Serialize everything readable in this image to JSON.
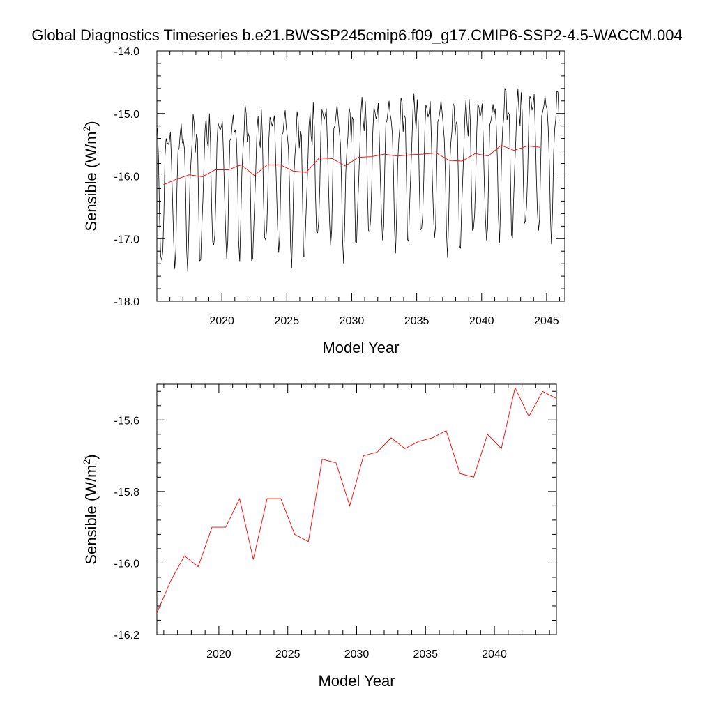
{
  "title": "Global Diagnostics Timeseries b.e21.BWSSP245cmip6.f09_g17.CMIP6-SSP2-4.5-WACCM.004",
  "colors": {
    "monthly": "#000000",
    "annual": "#ff0000",
    "axis": "#000000"
  },
  "chart_data": [
    {
      "type": "line",
      "xlabel": "Model Year",
      "ylabel": {
        "main": "Sensible (W/m",
        "sup": "2",
        "close": ")"
      },
      "xlim": [
        2015.0,
        2046.4
      ],
      "ylim": [
        -18.0,
        -14.0
      ],
      "xticks": [
        "2020",
        "2025",
        "2030",
        "2035",
        "2040",
        "2045"
      ],
      "yticks": [
        "-14.0",
        "-15.0",
        "-16.0",
        "-17.0",
        "-18.0"
      ],
      "monthly_pattern": [
        -15.2,
        -15.5,
        -16.3,
        -17.1,
        -17.3,
        -16.9,
        -16.2,
        -15.6,
        -15.3,
        -15.1,
        -15.2,
        -15.4
      ],
      "monthly_year_range": [
        2015,
        2045
      ],
      "series": [
        {
          "role": "monthly",
          "note": "monthly values: per-year annual mean plus seasonal cycle"
        },
        {
          "role": "annual",
          "x": [
            2015.5,
            2016.5,
            2017.5,
            2018.5,
            2019.5,
            2020.5,
            2021.5,
            2022.5,
            2023.5,
            2024.5,
            2025.5,
            2026.5,
            2027.5,
            2028.5,
            2029.5,
            2030.5,
            2031.5,
            2032.5,
            2033.5,
            2034.5,
            2035.5,
            2036.5,
            2037.5,
            2038.5,
            2039.5,
            2040.5,
            2041.5,
            2042.5,
            2043.5,
            2044.5
          ],
          "y": [
            -16.14,
            -16.05,
            -15.98,
            -16.01,
            -15.9,
            -15.9,
            -15.82,
            -15.99,
            -15.82,
            -15.82,
            -15.92,
            -15.94,
            -15.71,
            -15.72,
            -15.84,
            -15.7,
            -15.69,
            -15.65,
            -15.68,
            -15.66,
            -15.65,
            -15.63,
            -15.75,
            -15.76,
            -15.64,
            -15.68,
            -15.51,
            -15.59,
            -15.52,
            -15.54
          ]
        }
      ]
    },
    {
      "type": "line",
      "xlabel": "Model Year",
      "ylabel": {
        "main": "Sensible (W/m",
        "sup": "2",
        "close": ")"
      },
      "xlim": [
        2015.5,
        2044.5
      ],
      "ylim": [
        -16.2,
        -15.5
      ],
      "xticks": [
        "2020",
        "2025",
        "2030",
        "2035",
        "2040"
      ],
      "yticks": [
        "-15.6",
        "-15.8",
        "-16.0",
        "-16.2"
      ],
      "series": [
        {
          "role": "annual",
          "x": [
            2015.5,
            2016.5,
            2017.5,
            2018.5,
            2019.5,
            2020.5,
            2021.5,
            2022.5,
            2023.5,
            2024.5,
            2025.5,
            2026.5,
            2027.5,
            2028.5,
            2029.5,
            2030.5,
            2031.5,
            2032.5,
            2033.5,
            2034.5,
            2035.5,
            2036.5,
            2037.5,
            2038.5,
            2039.5,
            2040.5,
            2041.5,
            2042.5,
            2043.5,
            2044.5
          ],
          "y": [
            -16.14,
            -16.05,
            -15.98,
            -16.01,
            -15.9,
            -15.9,
            -15.82,
            -15.99,
            -15.82,
            -15.82,
            -15.92,
            -15.94,
            -15.71,
            -15.72,
            -15.84,
            -15.7,
            -15.69,
            -15.65,
            -15.68,
            -15.66,
            -15.65,
            -15.63,
            -15.75,
            -15.76,
            -15.64,
            -15.68,
            -15.51,
            -15.59,
            -15.52,
            -15.54
          ]
        }
      ]
    }
  ]
}
